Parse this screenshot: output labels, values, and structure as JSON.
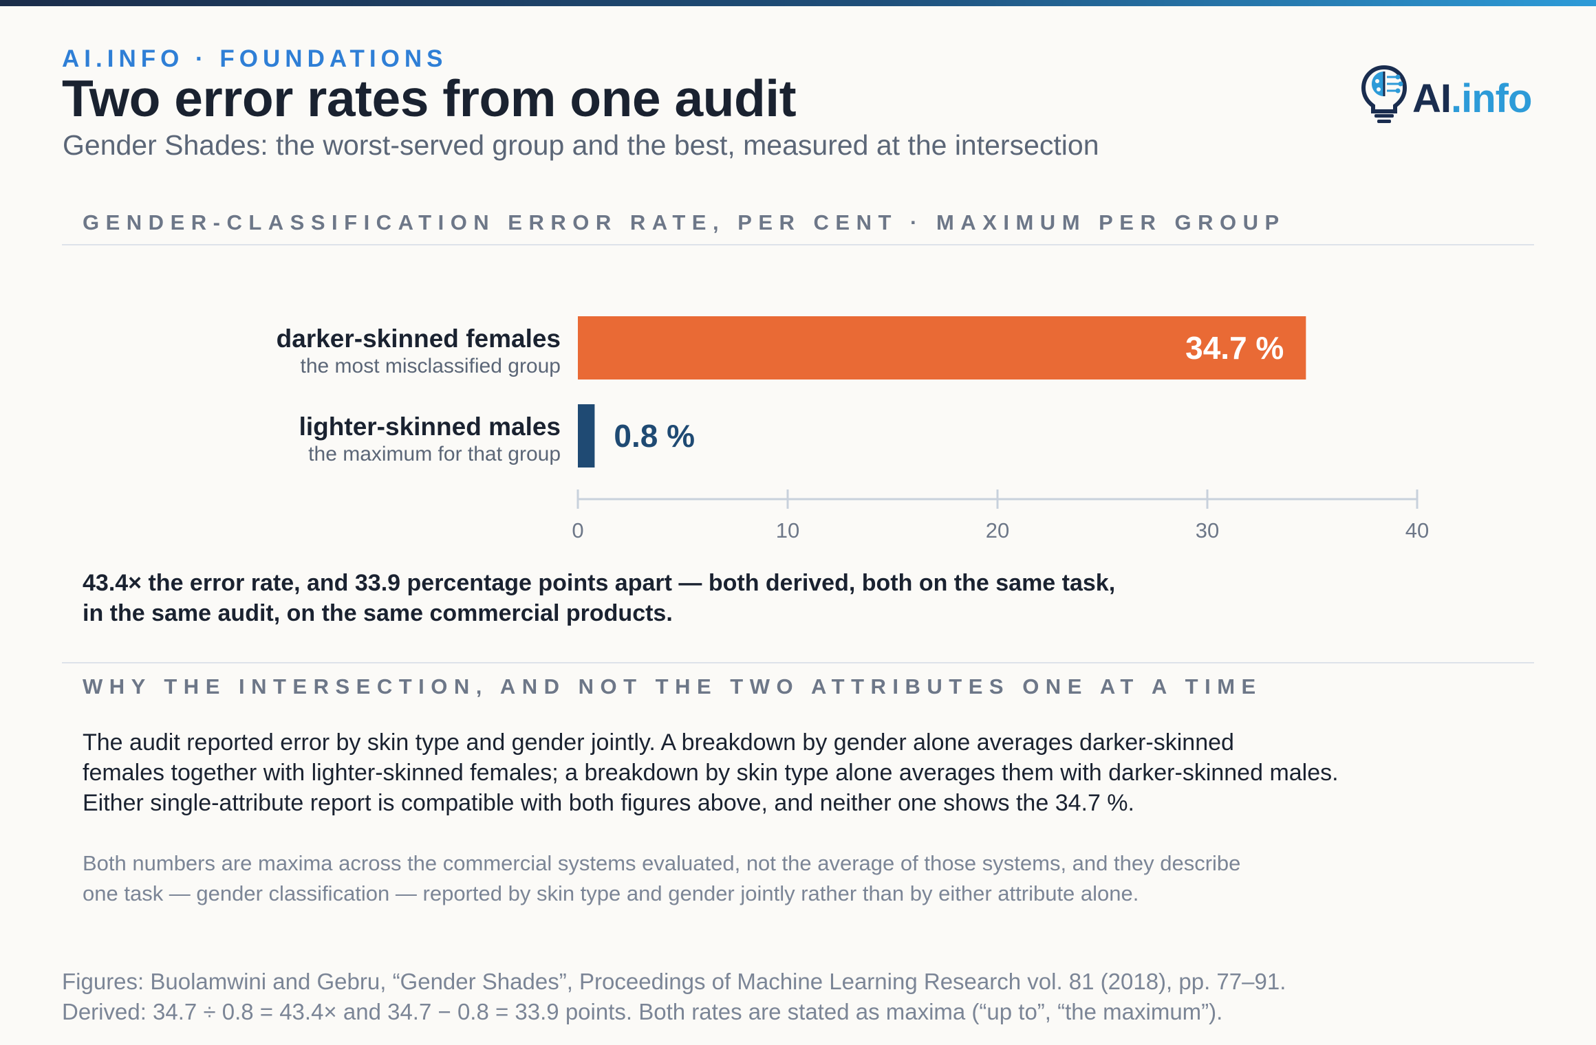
{
  "header": {
    "eyebrow": "AI.INFO · FOUNDATIONS",
    "title": "Two error rates from one audit",
    "subtitle": "Gender Shades: the worst-served group and the best, measured at the intersection"
  },
  "logo": {
    "text_main": "AI",
    "text_accent": ".info",
    "icon": "lightbulb-brain-icon"
  },
  "sections": {
    "chart_heading": "GENDER-CLASSIFICATION ERROR RATE, PER CENT · MAXIMUM PER GROUP",
    "intersection_heading": "WHY THE INTERSECTION, AND NOT THE TWO ATTRIBUTES ONE AT A TIME"
  },
  "callout": {
    "line1": "43.4× the error rate, and 33.9 percentage points apart — both derived, both on the same task,",
    "line2": "in the same audit, on the same commercial products."
  },
  "body": {
    "line1": "The audit reported error by skin type and gender jointly. A breakdown by gender alone averages darker-skinned",
    "line2": "females together with lighter-skinned females; a breakdown by skin type alone averages them with darker-skinned males.",
    "line3": "Either single-attribute report is compatible with both figures above, and neither one shows the 34.7 %."
  },
  "note": {
    "line1": "Both numbers are maxima across the commercial systems evaluated, not the average of those systems, and they describe",
    "line2": "one task — gender classification — reported by skin type and gender jointly rather than by either attribute alone."
  },
  "source": {
    "line1": "Figures: Buolamwini and Gebru, “Gender Shades”, Proceedings of Machine Learning Research vol. 81 (2018), pp. 77–91.",
    "line2": "Derived: 34.7 ÷ 0.8 = 43.4× and 34.7 − 0.8 = 33.9 points. Both rates are stated as maxima (“up to”, “the maximum”)."
  },
  "chart_data": {
    "type": "bar",
    "orientation": "horizontal",
    "categories": [
      "darker-skinned females",
      "lighter-skinned males"
    ],
    "category_notes": [
      "the most misclassified group",
      "the maximum for that group"
    ],
    "values": [
      34.7,
      0.8
    ],
    "value_labels": [
      "34.7 %",
      "0.8 %"
    ],
    "colors": [
      "#e96a35",
      "#1f4a73"
    ],
    "xlim": [
      0,
      40
    ],
    "ticks": [
      0,
      10,
      20,
      30,
      40
    ],
    "tick_labels": [
      "0",
      "10",
      "20",
      "30",
      "40"
    ],
    "grid": false
  }
}
